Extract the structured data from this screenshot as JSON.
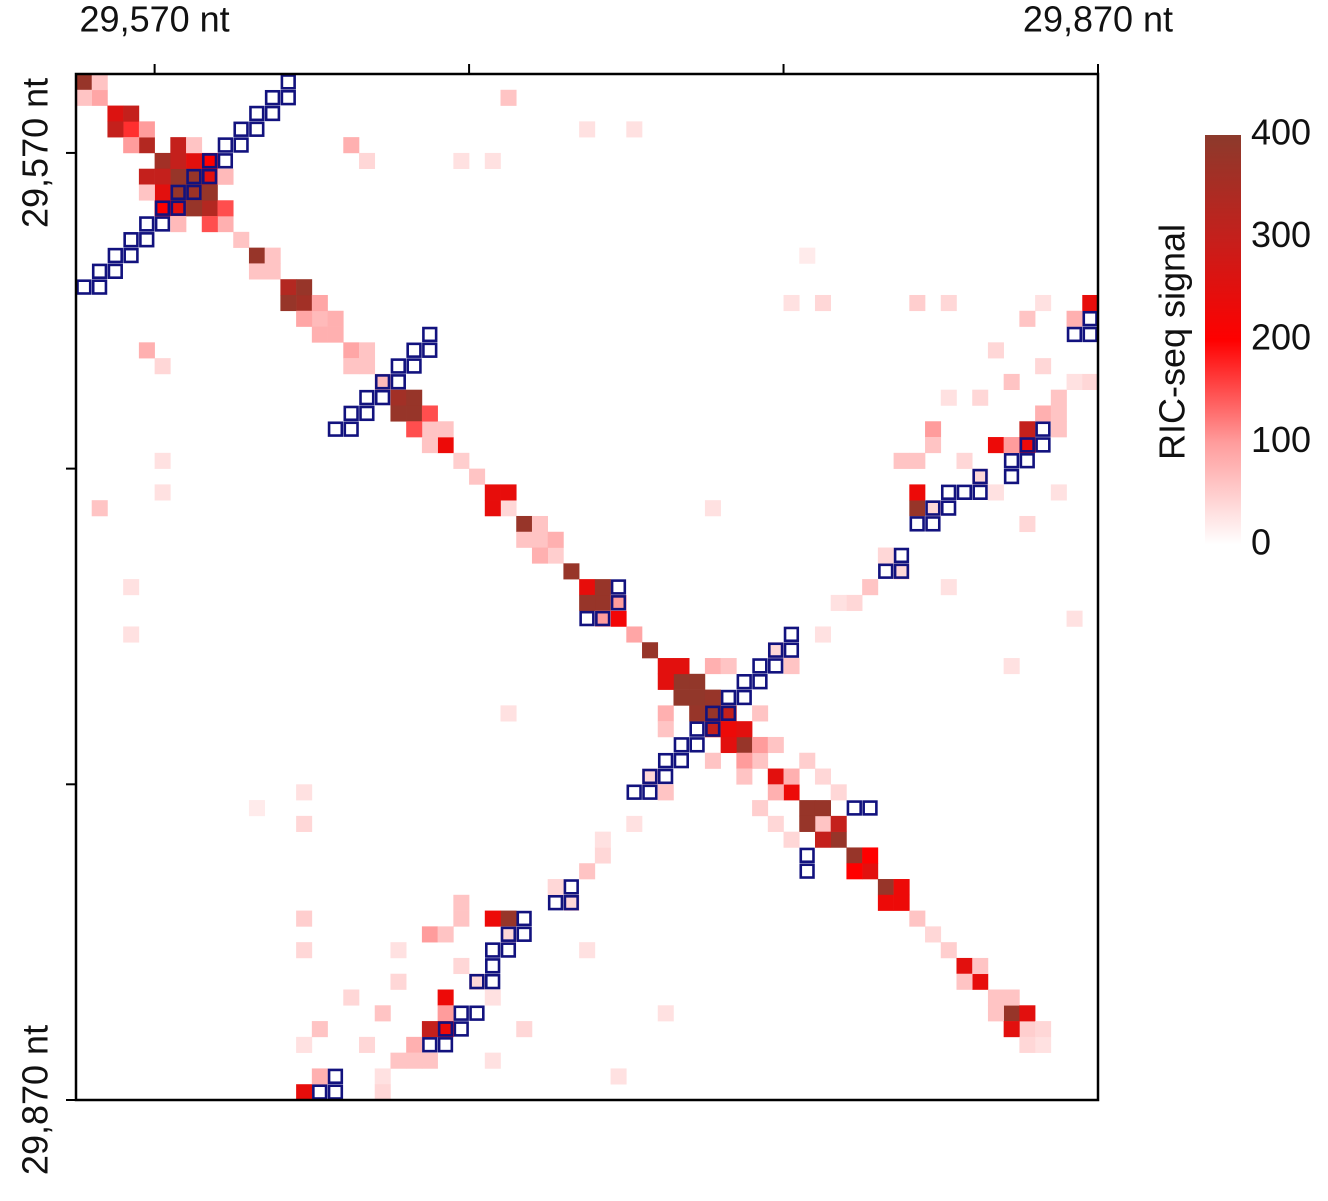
{
  "chart_data": {
    "type": "heatmap",
    "xlim": [
      29545,
      29870
    ],
    "ylim": [
      29545,
      29870
    ],
    "y_inverted": true,
    "bin": 5,
    "symmetric": true,
    "xticks": [
      {
        "value": 29570,
        "label": "29,570 nt"
      },
      {
        "value": 29670,
        "label": null
      },
      {
        "value": 29770,
        "label": null
      },
      {
        "value": 29870,
        "label": "29,870 nt"
      }
    ],
    "yticks": [
      {
        "value": 29570,
        "label": "29,570 nt"
      },
      {
        "value": 29670,
        "label": null
      },
      {
        "value": 29770,
        "label": null
      },
      {
        "value": 29870,
        "label": "29,870 nt"
      }
    ],
    "colorbar": {
      "label": "RIC-seq signal",
      "lim": [
        0,
        400
      ],
      "ticks": [
        0,
        100,
        200,
        300,
        400
      ]
    },
    "colorscale": [
      [
        0,
        "#ffffff"
      ],
      [
        100,
        "#ff9c9c"
      ],
      [
        200,
        "#ff0000"
      ],
      [
        300,
        "#c4201c"
      ],
      [
        400,
        "#8c3a2c"
      ]
    ],
    "structure_color": "#12127e",
    "cells": [
      [
        29545,
        29545,
        380
      ],
      [
        29550,
        29550,
        90
      ],
      [
        29555,
        29555,
        260
      ],
      [
        29560,
        29560,
        170
      ],
      [
        29565,
        29565,
        330
      ],
      [
        29570,
        29570,
        360
      ],
      [
        29575,
        29575,
        380
      ],
      [
        29580,
        29580,
        370
      ],
      [
        29585,
        29585,
        330
      ],
      [
        29590,
        29590,
        80
      ],
      [
        29595,
        29595,
        60
      ],
      [
        29600,
        29600,
        380
      ],
      [
        29605,
        29605,
        60
      ],
      [
        29610,
        29610,
        330
      ],
      [
        29615,
        29615,
        360
      ],
      [
        29620,
        29620,
        70
      ],
      [
        29625,
        29625,
        80
      ],
      [
        29630,
        29630,
        90
      ],
      [
        29635,
        29635,
        60
      ],
      [
        29640,
        29640,
        70
      ],
      [
        29645,
        29645,
        360
      ],
      [
        29650,
        29650,
        380
      ],
      [
        29655,
        29655,
        60
      ],
      [
        29660,
        29660,
        230
      ],
      [
        29665,
        29665,
        50
      ],
      [
        29670,
        29670,
        60
      ],
      [
        29675,
        29675,
        240
      ],
      [
        29680,
        29680,
        40
      ],
      [
        29685,
        29685,
        380
      ],
      [
        29690,
        29690,
        60
      ],
      [
        29695,
        29695,
        50
      ],
      [
        29700,
        29700,
        380
      ],
      [
        29705,
        29705,
        240
      ],
      [
        29710,
        29710,
        380
      ],
      [
        29715,
        29715,
        220
      ],
      [
        29720,
        29720,
        90
      ],
      [
        29725,
        29725,
        380
      ],
      [
        29730,
        29730,
        250
      ],
      [
        29735,
        29735,
        390
      ],
      [
        29740,
        29740,
        390
      ],
      [
        29745,
        29745,
        380
      ],
      [
        29750,
        29750,
        230
      ],
      [
        29755,
        29755,
        380
      ],
      [
        29760,
        29760,
        60
      ],
      [
        29765,
        29765,
        250
      ],
      [
        29770,
        29770,
        230
      ],
      [
        29775,
        29775,
        380
      ],
      [
        29780,
        29780,
        60
      ],
      [
        29785,
        29785,
        380
      ],
      [
        29790,
        29790,
        380
      ],
      [
        29795,
        29795,
        250
      ],
      [
        29800,
        29800,
        380
      ],
      [
        29805,
        29805,
        230
      ],
      [
        29810,
        29810,
        60
      ],
      [
        29815,
        29815,
        40
      ],
      [
        29820,
        29820,
        50
      ],
      [
        29825,
        29825,
        250
      ],
      [
        29830,
        29830,
        240
      ],
      [
        29835,
        29835,
        60
      ],
      [
        29840,
        29840,
        380
      ],
      [
        29845,
        29845,
        50
      ],
      [
        29850,
        29850,
        30
      ],
      [
        29550,
        29545,
        60
      ],
      [
        29560,
        29555,
        300
      ],
      [
        29565,
        29560,
        100
      ],
      [
        29575,
        29570,
        300
      ],
      [
        29580,
        29570,
        250
      ],
      [
        29585,
        29575,
        250
      ],
      [
        29580,
        29575,
        380
      ],
      [
        29585,
        29580,
        380
      ],
      [
        29590,
        29585,
        150
      ],
      [
        29605,
        29600,
        60
      ],
      [
        29615,
        29610,
        380
      ],
      [
        29620,
        29615,
        90
      ],
      [
        29625,
        29620,
        80
      ],
      [
        29635,
        29630,
        60
      ],
      [
        29650,
        29645,
        380
      ],
      [
        29655,
        29650,
        150
      ],
      [
        29660,
        29655,
        60
      ],
      [
        29680,
        29675,
        240
      ],
      [
        29690,
        29685,
        60
      ],
      [
        29695,
        29690,
        80
      ],
      [
        29710,
        29705,
        380
      ],
      [
        29715,
        29710,
        100
      ],
      [
        29735,
        29730,
        250
      ],
      [
        29740,
        29735,
        390
      ],
      [
        29745,
        29740,
        380
      ],
      [
        29750,
        29745,
        300
      ],
      [
        29755,
        29750,
        250
      ],
      [
        29760,
        29755,
        100
      ],
      [
        29770,
        29765,
        80
      ],
      [
        29780,
        29775,
        380
      ],
      [
        29785,
        29780,
        300
      ],
      [
        29795,
        29790,
        200
      ],
      [
        29805,
        29800,
        230
      ],
      [
        29830,
        29825,
        60
      ],
      [
        29840,
        29835,
        60
      ],
      [
        29845,
        29840,
        250
      ],
      [
        29850,
        29845,
        40
      ],
      [
        29575,
        29565,
        300
      ],
      [
        29585,
        29570,
        200
      ],
      [
        29580,
        29565,
        60
      ],
      [
        29590,
        29575,
        70
      ],
      [
        29630,
        29565,
        80
      ],
      [
        29635,
        29570,
        40
      ],
      [
        29680,
        29550,
        60
      ],
      [
        29705,
        29560,
        30
      ],
      [
        29720,
        29560,
        30
      ],
      [
        29665,
        29570,
        30
      ],
      [
        29675,
        29570,
        30
      ],
      [
        29745,
        29730,
        80
      ],
      [
        29750,
        29730,
        60
      ],
      [
        29760,
        29745,
        60
      ],
      [
        29765,
        29755,
        60
      ],
      [
        29775,
        29760,
        50
      ],
      [
        29780,
        29765,
        40
      ],
      [
        29785,
        29770,
        40
      ],
      [
        29810,
        29680,
        380
      ],
      [
        29810,
        29675,
        230
      ],
      [
        29815,
        29680,
        40
      ],
      [
        29805,
        29665,
        60
      ],
      [
        29810,
        29665,
        60
      ],
      [
        29815,
        29655,
        100
      ],
      [
        29815,
        29660,
        60
      ],
      [
        29820,
        29645,
        30
      ],
      [
        29835,
        29660,
        230
      ],
      [
        29840,
        29660,
        100
      ],
      [
        29845,
        29660,
        230
      ],
      [
        29845,
        29655,
        300
      ],
      [
        29850,
        29650,
        80
      ],
      [
        29855,
        29655,
        60
      ],
      [
        29855,
        29650,
        60
      ],
      [
        29865,
        29615,
        240
      ],
      [
        29860,
        29620,
        80
      ],
      [
        29850,
        29615,
        30
      ],
      [
        29845,
        29620,
        60
      ],
      [
        29835,
        29630,
        40
      ],
      [
        29830,
        29645,
        40
      ],
      [
        29840,
        29640,
        60
      ],
      [
        29850,
        29635,
        40
      ],
      [
        29855,
        29645,
        60
      ],
      [
        29860,
        29640,
        30
      ],
      [
        29865,
        29640,
        40
      ],
      [
        29825,
        29665,
        40
      ],
      [
        29830,
        29670,
        40
      ],
      [
        29835,
        29675,
        30
      ],
      [
        29845,
        29685,
        40
      ],
      [
        29855,
        29675,
        30
      ],
      [
        29800,
        29695,
        40
      ],
      [
        29795,
        29705,
        60
      ],
      [
        29790,
        29710,
        40
      ],
      [
        29785,
        29710,
        30
      ],
      [
        29780,
        29720,
        30
      ],
      [
        29770,
        29730,
        60
      ],
      [
        29765,
        29725,
        40
      ],
      [
        29805,
        29700,
        40
      ],
      [
        29820,
        29705,
        30
      ],
      [
        29770,
        29615,
        30
      ],
      [
        29780,
        29615,
        40
      ],
      [
        29810,
        29615,
        50
      ],
      [
        29820,
        29615,
        40
      ],
      [
        29745,
        29680,
        30
      ],
      [
        29775,
        29600,
        20
      ],
      [
        29840,
        29730,
        30
      ],
      [
        29860,
        29715,
        30
      ]
    ],
    "structure": [
      [
        29580,
        29575
      ],
      [
        29585,
        29570
      ],
      [
        29590,
        29565
      ],
      [
        29595,
        29560
      ],
      [
        29600,
        29555
      ],
      [
        29605,
        29550
      ],
      [
        29610,
        29545
      ],
      [
        29580,
        29580
      ],
      [
        29585,
        29575
      ],
      [
        29590,
        29570
      ],
      [
        29595,
        29565
      ],
      [
        29600,
        29560
      ],
      [
        29605,
        29555
      ],
      [
        29610,
        29550
      ],
      [
        29640,
        29640
      ],
      [
        29645,
        29635
      ],
      [
        29650,
        29630
      ],
      [
        29655,
        29625
      ],
      [
        29645,
        29640
      ],
      [
        29650,
        29635
      ],
      [
        29655,
        29630
      ],
      [
        29715,
        29705
      ],
      [
        29715,
        29710
      ],
      [
        29745,
        29745
      ],
      [
        29750,
        29740
      ],
      [
        29755,
        29735
      ],
      [
        29760,
        29730
      ],
      [
        29765,
        29725
      ],
      [
        29770,
        29720
      ],
      [
        29750,
        29745
      ],
      [
        29755,
        29740
      ],
      [
        29760,
        29735
      ],
      [
        29765,
        29730
      ],
      [
        29770,
        29725
      ],
      [
        29790,
        29775
      ],
      [
        29795,
        29775
      ],
      [
        29800,
        29700
      ],
      [
        29805,
        29700
      ],
      [
        29805,
        29695
      ],
      [
        29810,
        29685
      ],
      [
        29815,
        29685
      ],
      [
        29815,
        29680
      ],
      [
        29820,
        29680
      ],
      [
        29820,
        29675
      ],
      [
        29825,
        29675
      ],
      [
        29830,
        29675
      ],
      [
        29830,
        29670
      ],
      [
        29840,
        29670
      ],
      [
        29840,
        29665
      ],
      [
        29845,
        29665
      ],
      [
        29845,
        29660
      ],
      [
        29850,
        29660
      ],
      [
        29850,
        29655
      ],
      [
        29860,
        29625
      ],
      [
        29865,
        29625
      ],
      [
        29865,
        29620
      ]
    ]
  }
}
